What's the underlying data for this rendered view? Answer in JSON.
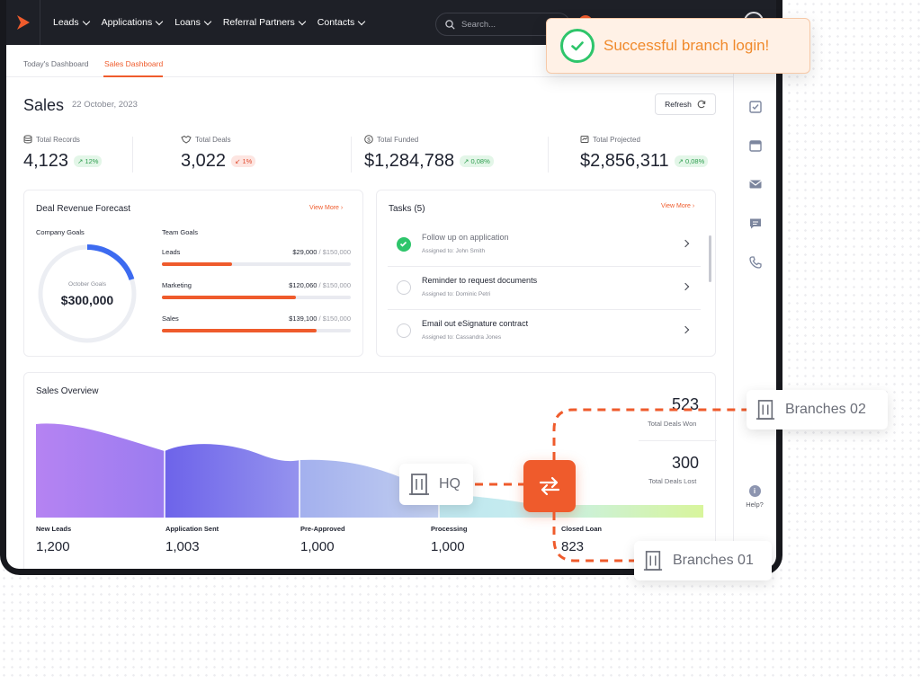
{
  "nav": {
    "items": [
      "Leads",
      "Applications",
      "Loans",
      "Referral Partners",
      "Contacts"
    ],
    "search_placeholder": "Search..."
  },
  "tabs": [
    "Today's Dashboard",
    "Sales Dashboard"
  ],
  "header": {
    "title": "Sales",
    "date": "22 October, 2023",
    "refresh_label": "Refresh"
  },
  "stats": [
    {
      "label": "Total Records",
      "value": "4,123",
      "change": "12%",
      "trend": "up"
    },
    {
      "label": "Total Deals",
      "value": "3,022",
      "change": "1%",
      "trend": "down"
    },
    {
      "label": "Total Funded",
      "value": "$1,284,788",
      "change": "0,08%",
      "trend": "up"
    },
    {
      "label": "Total Projected",
      "value": "$2,856,311",
      "change": "0,08%",
      "trend": "up"
    }
  ],
  "forecast": {
    "title": "Deal Revenue Forecast",
    "view_more": "View More",
    "company_goals_label": "Company Goals",
    "team_goals_label": "Team Goals",
    "donut_label": "October Goals",
    "donut_value": "$300,000",
    "donut_progress": 0.2,
    "goals": [
      {
        "name": "Leads",
        "amount": "$29,000",
        "target": "/ $150,000",
        "progress": 0.37
      },
      {
        "name": "Marketing",
        "amount": "$120,060",
        "target": "/ $150,000",
        "progress": 0.71
      },
      {
        "name": "Sales",
        "amount": "$139,100",
        "target": "/ $150,000",
        "progress": 0.82
      }
    ]
  },
  "tasks": {
    "title": "Tasks (5)",
    "view_more": "View More",
    "items": [
      {
        "title": "Follow up on application",
        "assigned": "Assigned to: John Smith",
        "done": true
      },
      {
        "title": "Reminder to request documents",
        "assigned": "Assigned to: Dominic Petri",
        "done": false
      },
      {
        "title": "Email out eSignature contract",
        "assigned": "Assigned to: Cassandra Jones",
        "done": false
      }
    ]
  },
  "overview": {
    "title": "Sales Overview",
    "stages": [
      {
        "label": "New Leads",
        "value": "1,200"
      },
      {
        "label": "Application Sent",
        "value": "1,003"
      },
      {
        "label": "Pre-Approved",
        "value": "1,000"
      },
      {
        "label": "Processing",
        "value": "1,000"
      },
      {
        "label": "Closed Loan",
        "value": "823"
      }
    ],
    "deals_won": "523",
    "deals_won_label": "Total Deals Won",
    "deals_lost": "300",
    "deals_lost_label": "Total Deals Lost"
  },
  "help_label": "Help?",
  "toast": "Successful branch login!",
  "branches": {
    "hq": "HQ",
    "b01": "Branches 01",
    "b02": "Branches 02"
  },
  "colors": {
    "accent": "#ef5b2c",
    "success": "#2ec56b",
    "nav_bg": "#1e2027"
  }
}
